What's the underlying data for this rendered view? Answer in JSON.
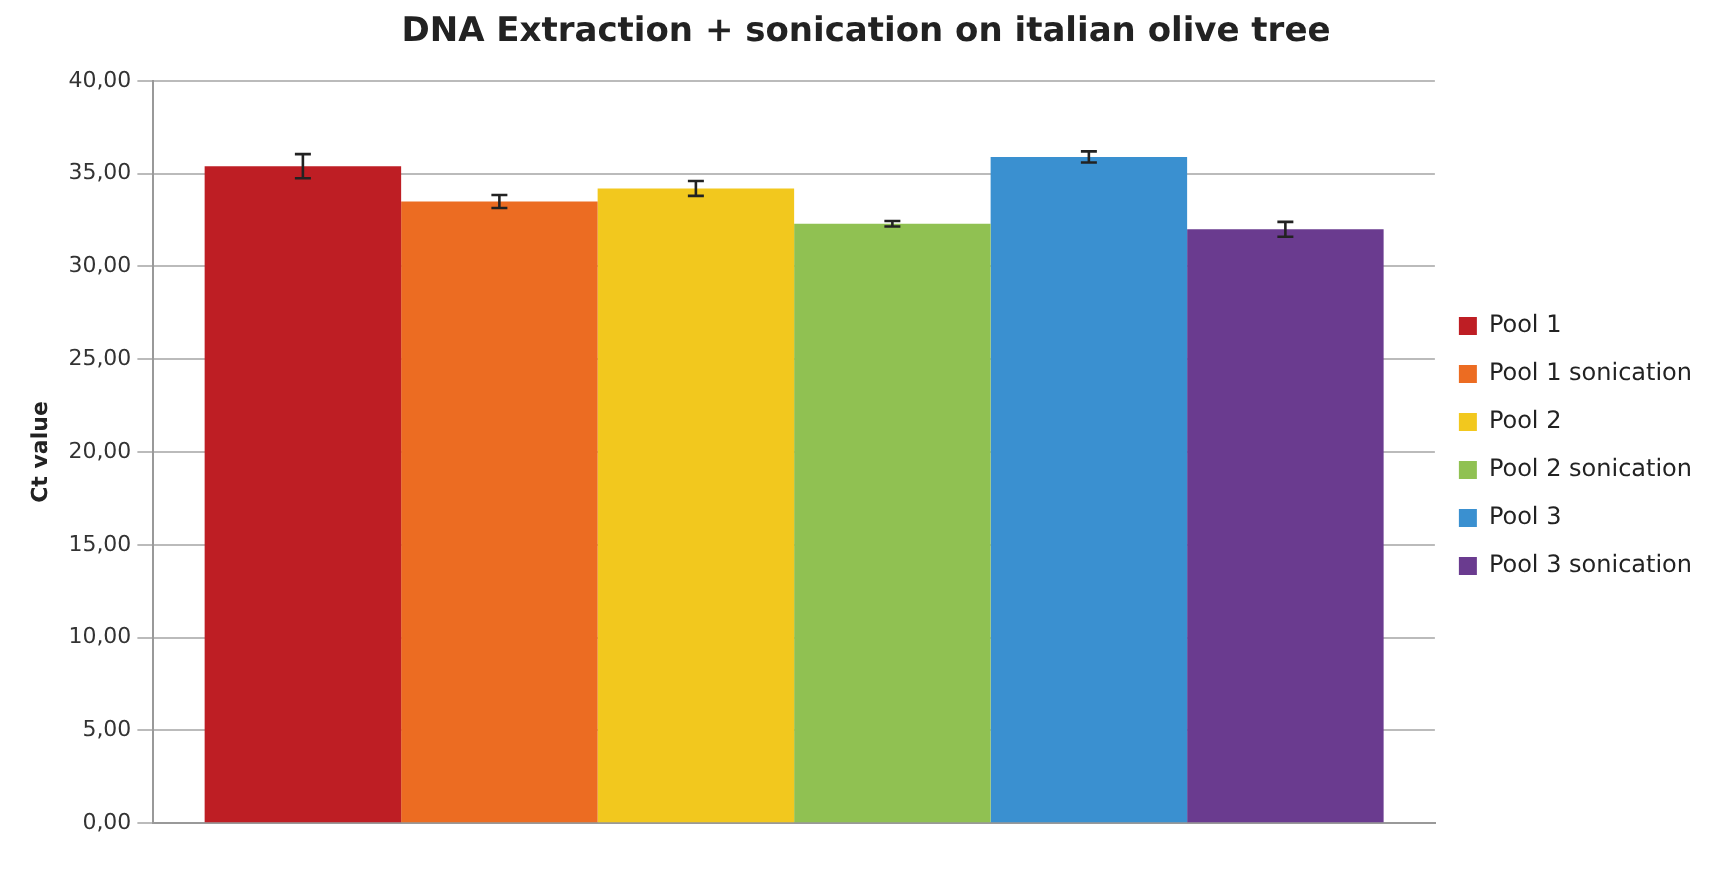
{
  "chart_data": {
    "type": "bar",
    "title": "DNA Extraction + sonication on italian olive tree",
    "ylabel": "Ct value",
    "categories": [
      null
    ],
    "series": [
      {
        "name": "Pool 1",
        "color": "#be1e24",
        "values": [
          35.4
        ],
        "errors": [
          0.65
        ]
      },
      {
        "name": "Pool 1 sonication",
        "color": "#ec6c22",
        "values": [
          33.5
        ],
        "errors": [
          0.35
        ]
      },
      {
        "name": "Pool 2",
        "color": "#f2c81e",
        "values": [
          34.2
        ],
        "errors": [
          0.4
        ]
      },
      {
        "name": "Pool 2 sonication",
        "color": "#90c152",
        "values": [
          32.3
        ],
        "errors": [
          0.15
        ]
      },
      {
        "name": "Pool 3",
        "color": "#3a90d0",
        "values": [
          35.9
        ],
        "errors": [
          0.3
        ]
      },
      {
        "name": "Pool 3 sonication",
        "color": "#6a3b8f",
        "values": [
          32.0
        ],
        "errors": [
          0.4
        ]
      }
    ],
    "ylim": [
      0,
      40
    ],
    "yticks": [
      {
        "value": 0,
        "label": "0,00"
      },
      {
        "value": 5,
        "label": "5,00"
      },
      {
        "value": 10,
        "label": "10,00"
      },
      {
        "value": 15,
        "label": "15,00"
      },
      {
        "value": 20,
        "label": "20,00"
      },
      {
        "value": 25,
        "label": "25,00"
      },
      {
        "value": 30,
        "label": "30,00"
      },
      {
        "value": 35,
        "label": "35,00"
      },
      {
        "value": 40,
        "label": "40,00"
      }
    ],
    "grid": "y",
    "legend": "right"
  }
}
